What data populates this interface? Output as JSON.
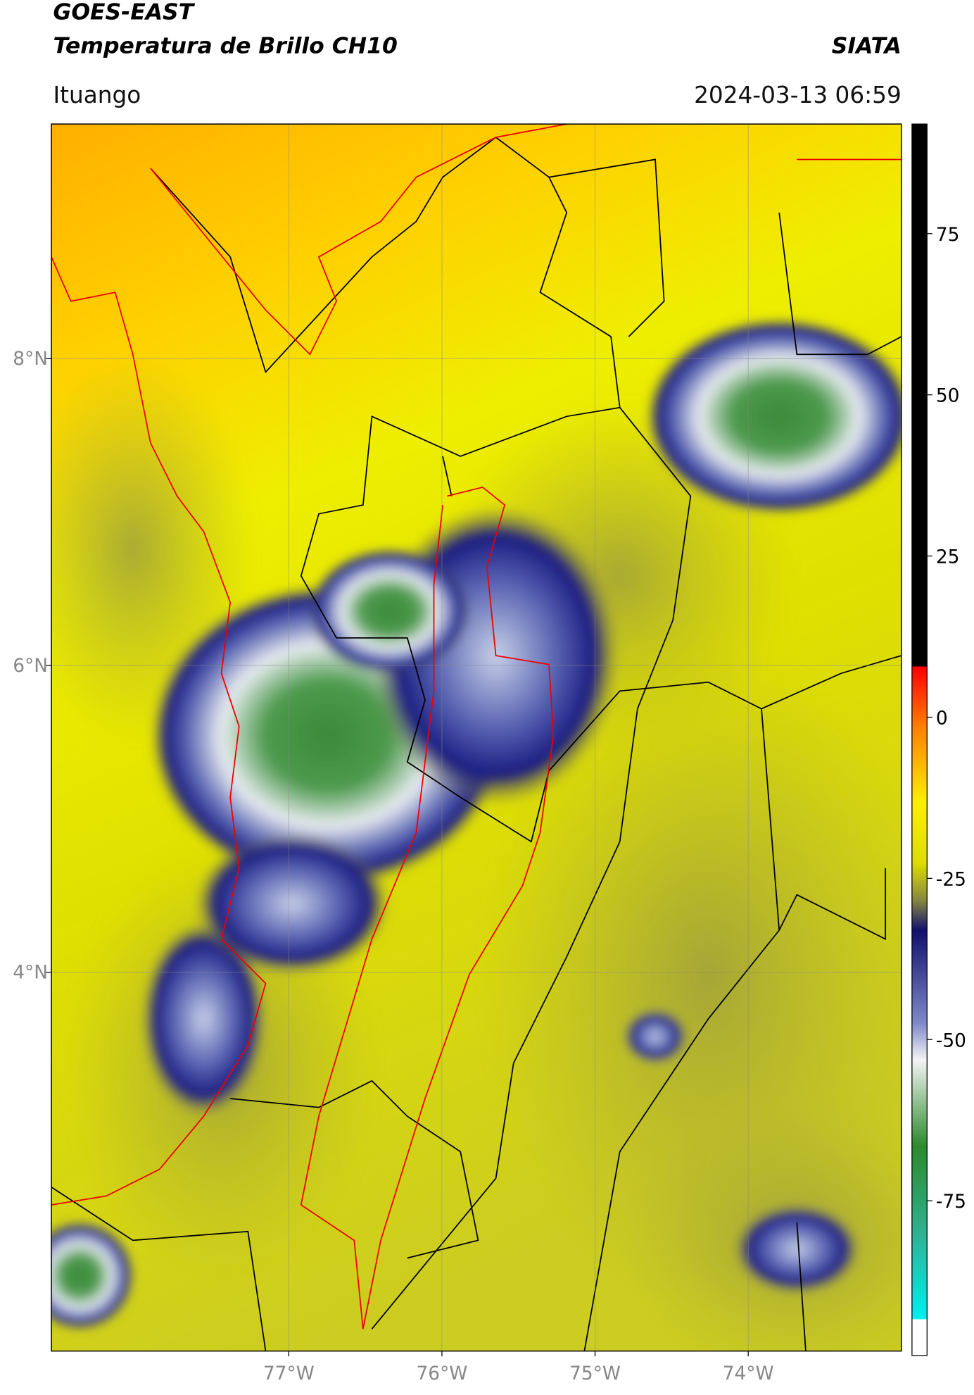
{
  "header": {
    "title": "GOES-EAST",
    "subtitle": "Temperatura de Brillo CH10",
    "agency": "SIATA",
    "location": "Ituango",
    "datetime": "2024-03-13 06:59"
  },
  "map": {
    "xlim": [
      -78.55,
      -73.0
    ],
    "ylim": [
      1.53,
      9.53
    ],
    "lat_ticks": [
      {
        "value": 8,
        "label": "8°N"
      },
      {
        "value": 6,
        "label": "6°N"
      },
      {
        "value": 4,
        "label": "4°N"
      }
    ],
    "lon_ticks": [
      {
        "value": -77,
        "label": "77°W"
      },
      {
        "value": -76,
        "label": "76°W"
      },
      {
        "value": -75,
        "label": "75°W"
      },
      {
        "value": -74,
        "label": "74°W"
      }
    ]
  },
  "colorbar": {
    "lim": [
      -99,
      92
    ],
    "ticks": [
      75,
      50,
      25,
      0,
      -25,
      -50,
      -75
    ]
  }
}
